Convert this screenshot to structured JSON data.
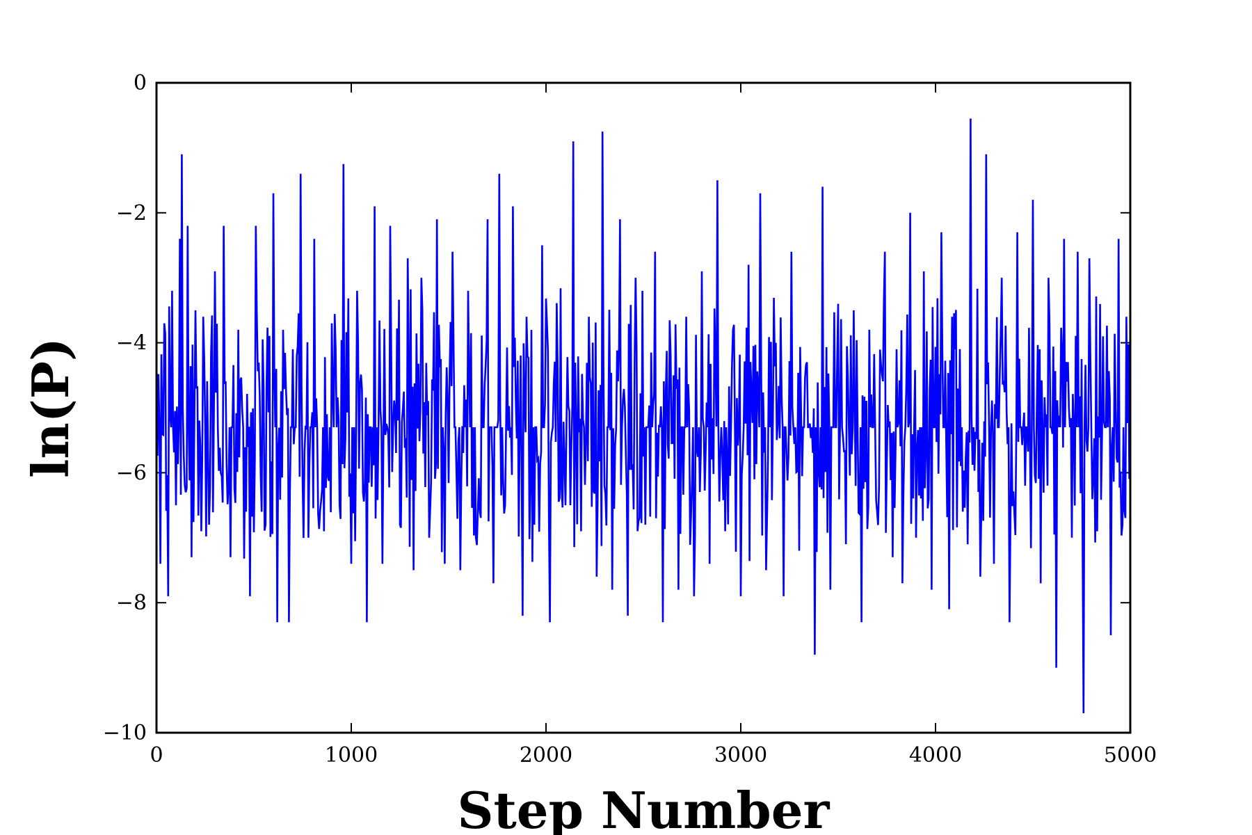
{
  "chart_data": {
    "type": "line",
    "title": "",
    "xlabel": "Step Number",
    "ylabel": "ln(P)",
    "xlim": [
      0,
      5000
    ],
    "ylim": [
      -10,
      0
    ],
    "xticks": [
      0,
      1000,
      2000,
      3000,
      4000,
      5000
    ],
    "xtick_labels": [
      "0",
      "1000",
      "2000",
      "3000",
      "4000",
      "5000"
    ],
    "yticks": [
      0,
      -2,
      -4,
      -6,
      -8,
      -10
    ],
    "ytick_labels": [
      "0",
      "−2",
      "−4",
      "−6",
      "−8",
      "−10"
    ],
    "grid": false,
    "legend": "none",
    "series": [
      {
        "color": "#0000ff",
        "step_interval": 5,
        "mean": -5.3,
        "min": -9.7,
        "max": -0.55,
        "points": [
          [
            0,
            -4.6
          ],
          [
            20,
            -7.4
          ],
          [
            40,
            -3.7
          ],
          [
            60,
            -7.9
          ],
          [
            80,
            -3.2
          ],
          [
            100,
            -6.5
          ],
          [
            120,
            -2.4
          ],
          [
            130,
            -1.1
          ],
          [
            150,
            -6.3
          ],
          [
            160,
            -2.2
          ],
          [
            180,
            -7.3
          ],
          [
            200,
            -3.5
          ],
          [
            230,
            -6.9
          ],
          [
            240,
            -3.6
          ],
          [
            270,
            -6.8
          ],
          [
            300,
            -2.9
          ],
          [
            330,
            -6.0
          ],
          [
            345,
            -2.2
          ],
          [
            380,
            -7.3
          ],
          [
            420,
            -3.8
          ],
          [
            460,
            -6.6
          ],
          [
            480,
            -7.9
          ],
          [
            510,
            -2.2
          ],
          [
            560,
            -6.8
          ],
          [
            600,
            -1.7
          ],
          [
            620,
            -8.3
          ],
          [
            650,
            -3.8
          ],
          [
            680,
            -8.3
          ],
          [
            700,
            -4.1
          ],
          [
            740,
            -1.4
          ],
          [
            780,
            -7.0
          ],
          [
            810,
            -2.4
          ],
          [
            860,
            -6.9
          ],
          [
            900,
            -3.7
          ],
          [
            940,
            -6.5
          ],
          [
            960,
            -1.25
          ],
          [
            1000,
            -7.4
          ],
          [
            1030,
            -3.2
          ],
          [
            1060,
            -6.3
          ],
          [
            1080,
            -8.3
          ],
          [
            1120,
            -1.9
          ],
          [
            1160,
            -7.4
          ],
          [
            1200,
            -2.2
          ],
          [
            1250,
            -6.8
          ],
          [
            1290,
            -2.7
          ],
          [
            1320,
            -7.5
          ],
          [
            1360,
            -3.0
          ],
          [
            1400,
            -7.0
          ],
          [
            1440,
            -2.1
          ],
          [
            1480,
            -7.4
          ],
          [
            1520,
            -2.6
          ],
          [
            1560,
            -7.5
          ],
          [
            1600,
            -3.2
          ],
          [
            1640,
            -7.0
          ],
          [
            1700,
            -2.1
          ],
          [
            1730,
            -7.7
          ],
          [
            1760,
            -1.4
          ],
          [
            1790,
            -6.5
          ],
          [
            1830,
            -1.9
          ],
          [
            1880,
            -8.2
          ],
          [
            1900,
            -3.6
          ],
          [
            1940,
            -6.8
          ],
          [
            1980,
            -2.5
          ],
          [
            2020,
            -8.3
          ],
          [
            2060,
            -4.4
          ],
          [
            2100,
            -6.5
          ],
          [
            2140,
            -0.9
          ],
          [
            2180,
            -6.9
          ],
          [
            2220,
            -3.6
          ],
          [
            2260,
            -7.6
          ],
          [
            2290,
            -0.75
          ],
          [
            2340,
            -7.8
          ],
          [
            2380,
            -2.1
          ],
          [
            2420,
            -8.2
          ],
          [
            2460,
            -3.0
          ],
          [
            2510,
            -6.8
          ],
          [
            2560,
            -2.6
          ],
          [
            2600,
            -8.3
          ],
          [
            2640,
            -4.2
          ],
          [
            2680,
            -7.8
          ],
          [
            2720,
            -3.6
          ],
          [
            2760,
            -7.9
          ],
          [
            2800,
            -2.9
          ],
          [
            2840,
            -7.4
          ],
          [
            2880,
            -1.5
          ],
          [
            2920,
            -6.9
          ],
          [
            2960,
            -3.8
          ],
          [
            3000,
            -7.9
          ],
          [
            3040,
            -2.8
          ],
          [
            3070,
            -6.1
          ],
          [
            3100,
            -1.7
          ],
          [
            3130,
            -7.5
          ],
          [
            3180,
            -4.0
          ],
          [
            3220,
            -7.9
          ],
          [
            3260,
            -2.6
          ],
          [
            3300,
            -7.2
          ],
          [
            3340,
            -4.3
          ],
          [
            3380,
            -8.8
          ],
          [
            3420,
            -1.6
          ],
          [
            3460,
            -7.8
          ],
          [
            3500,
            -3.4
          ],
          [
            3540,
            -7.1
          ],
          [
            3580,
            -3.5
          ],
          [
            3620,
            -8.3
          ],
          [
            3660,
            -3.8
          ],
          [
            3700,
            -6.6
          ],
          [
            3740,
            -2.6
          ],
          [
            3780,
            -7.3
          ],
          [
            3800,
            -4.1
          ],
          [
            3830,
            -7.7
          ],
          [
            3870,
            -2.0
          ],
          [
            3900,
            -7.0
          ],
          [
            3940,
            -2.9
          ],
          [
            3980,
            -7.8
          ],
          [
            4030,
            -2.3
          ],
          [
            4070,
            -8.1
          ],
          [
            4100,
            -4.1
          ],
          [
            4140,
            -6.6
          ],
          [
            4180,
            -0.55
          ],
          [
            4230,
            -7.6
          ],
          [
            4260,
            -1.1
          ],
          [
            4300,
            -7.4
          ],
          [
            4340,
            -3.0
          ],
          [
            4380,
            -8.3
          ],
          [
            4420,
            -2.3
          ],
          [
            4460,
            -6.2
          ],
          [
            4500,
            -1.8
          ],
          [
            4540,
            -7.7
          ],
          [
            4580,
            -3.0
          ],
          [
            4620,
            -9.0
          ],
          [
            4660,
            -2.4
          ],
          [
            4700,
            -7.0
          ],
          [
            4730,
            -2.6
          ],
          [
            4760,
            -9.7
          ],
          [
            4790,
            -2.7
          ],
          [
            4830,
            -6.9
          ],
          [
            4860,
            -3.9
          ],
          [
            4900,
            -8.5
          ],
          [
            4940,
            -2.4
          ],
          [
            4960,
            -6.8
          ],
          [
            4980,
            -3.6
          ],
          [
            5000,
            -4.2
          ]
        ]
      }
    ]
  }
}
